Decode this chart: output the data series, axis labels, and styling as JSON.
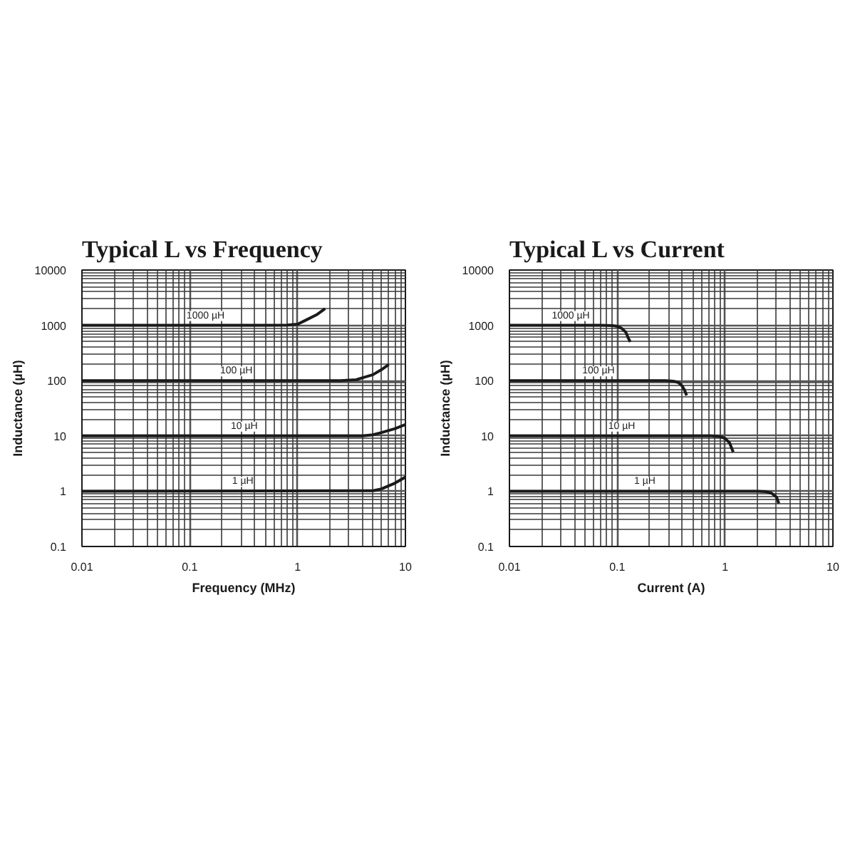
{
  "chart_data": [
    {
      "type": "line",
      "title": "Typical L vs Frequency",
      "xlabel": "Frequency (MHz)",
      "ylabel": "Inductance (µH)",
      "log": "xy",
      "grid": true,
      "xlim": [
        0.01,
        10
      ],
      "ylim": [
        0.1,
        10000
      ],
      "xticks": [
        0.01,
        {
          "value": 0.02,
          "label": null
        },
        {
          "value": 0.03,
          "label": null
        },
        {
          "value": 0.04,
          "label": null
        },
        {
          "value": 0.05,
          "label": null
        },
        {
          "value": 0.06,
          "label": null
        },
        {
          "value": 0.07,
          "label": null
        },
        {
          "value": 0.08,
          "label": null
        },
        {
          "value": 0.09,
          "label": null
        },
        0.1,
        {
          "value": 0.2,
          "label": null
        },
        {
          "value": 0.3,
          "label": null
        },
        {
          "value": 0.4,
          "label": null
        },
        {
          "value": 0.5,
          "label": null
        },
        {
          "value": 0.6,
          "label": null
        },
        {
          "value": 0.7,
          "label": null
        },
        {
          "value": 0.8,
          "label": null
        },
        {
          "value": 0.9,
          "label": null
        },
        1,
        {
          "value": 2,
          "label": null
        },
        {
          "value": 3,
          "label": null
        },
        {
          "value": 4,
          "label": null
        },
        {
          "value": 5,
          "label": null
        },
        {
          "value": 6,
          "label": null
        },
        {
          "value": 7,
          "label": null
        },
        {
          "value": 8,
          "label": null
        },
        {
          "value": 9,
          "label": null
        },
        10
      ],
      "yticks": [
        0.1,
        {
          "value": 0.2,
          "label": null
        },
        {
          "value": 0.3,
          "label": null
        },
        {
          "value": 0.4,
          "label": null
        },
        {
          "value": 0.5,
          "label": null
        },
        {
          "value": 0.6,
          "label": null
        },
        {
          "value": 0.7,
          "label": null
        },
        {
          "value": 0.8,
          "label": null
        },
        {
          "value": 0.9,
          "label": null
        },
        1,
        {
          "value": 2,
          "label": null
        },
        {
          "value": 3,
          "label": null
        },
        {
          "value": 4,
          "label": null
        },
        {
          "value": 5,
          "label": null
        },
        {
          "value": 6,
          "label": null
        },
        {
          "value": 7,
          "label": null
        },
        {
          "value": 8,
          "label": null
        },
        {
          "value": 9,
          "label": null
        },
        10,
        {
          "value": 20,
          "label": null
        },
        {
          "value": 30,
          "label": null
        },
        {
          "value": 40,
          "label": null
        },
        {
          "value": 50,
          "label": null
        },
        {
          "value": 60,
          "label": null
        },
        {
          "value": 70,
          "label": null
        },
        {
          "value": 80,
          "label": null
        },
        {
          "value": 90,
          "label": null
        },
        100,
        {
          "value": 200,
          "label": null
        },
        {
          "value": 300,
          "label": null
        },
        {
          "value": 400,
          "label": null
        },
        {
          "value": 500,
          "label": null
        },
        {
          "value": 600,
          "label": null
        },
        {
          "value": 700,
          "label": null
        },
        {
          "value": 800,
          "label": null
        },
        {
          "value": 900,
          "label": null
        },
        1000,
        {
          "value": 2000,
          "label": null
        },
        {
          "value": 3000,
          "label": null
        },
        {
          "value": 4000,
          "label": null
        },
        {
          "value": 5000,
          "label": null
        },
        {
          "value": 6000,
          "label": null
        },
        {
          "value": 7000,
          "label": null
        },
        {
          "value": 8000,
          "label": null
        },
        {
          "value": 9000,
          "label": null
        },
        10000
      ],
      "series": [
        {
          "color": "#1a1a1a",
          "x": [
            0.01,
            0.5,
            0.8,
            1.0,
            1.2,
            1.5,
            1.8
          ],
          "values": [
            1000,
            1000,
            1010,
            1050,
            1250,
            1550,
            2000
          ]
        },
        {
          "color": "#1a1a1a",
          "x": [
            0.01,
            2.5,
            3.5,
            5,
            6,
            7
          ],
          "values": [
            100,
            100,
            104,
            128,
            158,
            195
          ]
        },
        {
          "color": "#1a1a1a",
          "x": [
            0.01,
            4,
            5,
            6,
            8,
            10
          ],
          "values": [
            10,
            10,
            10.5,
            11.5,
            13.5,
            16
          ]
        },
        {
          "color": "#1a1a1a",
          "x": [
            0.01,
            5,
            6,
            8,
            10
          ],
          "values": [
            1,
            1.02,
            1.1,
            1.4,
            1.8
          ]
        }
      ],
      "annotations": [
        {
          "text": "1000 µH",
          "x": 0.14,
          "y": 1000
        },
        {
          "text": "100 µH",
          "x": 0.27,
          "y": 100
        },
        {
          "text": "10 µH",
          "x": 0.32,
          "y": 10
        },
        {
          "text": "1 µH",
          "x": 0.31,
          "y": 1
        }
      ]
    },
    {
      "type": "line",
      "title": "Typical L vs Current",
      "xlabel": "Current (A)",
      "ylabel": "Inductance (µH)",
      "log": "xy",
      "grid": true,
      "xlim": [
        0.01,
        10
      ],
      "ylim": [
        0.1,
        10000
      ],
      "xticks": [
        0.01,
        {
          "value": 0.02,
          "label": null
        },
        {
          "value": 0.03,
          "label": null
        },
        {
          "value": 0.04,
          "label": null
        },
        {
          "value": 0.05,
          "label": null
        },
        {
          "value": 0.06,
          "label": null
        },
        {
          "value": 0.07,
          "label": null
        },
        {
          "value": 0.08,
          "label": null
        },
        {
          "value": 0.09,
          "label": null
        },
        0.1,
        {
          "value": 0.2,
          "label": null
        },
        {
          "value": 0.3,
          "label": null
        },
        {
          "value": 0.4,
          "label": null
        },
        {
          "value": 0.5,
          "label": null
        },
        {
          "value": 0.6,
          "label": null
        },
        {
          "value": 0.7,
          "label": null
        },
        {
          "value": 0.8,
          "label": null
        },
        {
          "value": 0.9,
          "label": null
        },
        1,
        {
          "value": 2,
          "label": null
        },
        {
          "value": 3,
          "label": null
        },
        {
          "value": 4,
          "label": null
        },
        {
          "value": 5,
          "label": null
        },
        {
          "value": 6,
          "label": null
        },
        {
          "value": 7,
          "label": null
        },
        {
          "value": 8,
          "label": null
        },
        {
          "value": 9,
          "label": null
        },
        10
      ],
      "yticks": [
        0.1,
        {
          "value": 0.2,
          "label": null
        },
        {
          "value": 0.3,
          "label": null
        },
        {
          "value": 0.4,
          "label": null
        },
        {
          "value": 0.5,
          "label": null
        },
        {
          "value": 0.6,
          "label": null
        },
        {
          "value": 0.7,
          "label": null
        },
        {
          "value": 0.8,
          "label": null
        },
        {
          "value": 0.9,
          "label": null
        },
        1,
        {
          "value": 2,
          "label": null
        },
        {
          "value": 3,
          "label": null
        },
        {
          "value": 4,
          "label": null
        },
        {
          "value": 5,
          "label": null
        },
        {
          "value": 6,
          "label": null
        },
        {
          "value": 7,
          "label": null
        },
        {
          "value": 8,
          "label": null
        },
        {
          "value": 9,
          "label": null
        },
        10,
        {
          "value": 20,
          "label": null
        },
        {
          "value": 30,
          "label": null
        },
        {
          "value": 40,
          "label": null
        },
        {
          "value": 50,
          "label": null
        },
        {
          "value": 60,
          "label": null
        },
        {
          "value": 70,
          "label": null
        },
        {
          "value": 80,
          "label": null
        },
        {
          "value": 90,
          "label": null
        },
        100,
        {
          "value": 200,
          "label": null
        },
        {
          "value": 300,
          "label": null
        },
        {
          "value": 400,
          "label": null
        },
        {
          "value": 500,
          "label": null
        },
        {
          "value": 600,
          "label": null
        },
        {
          "value": 700,
          "label": null
        },
        {
          "value": 800,
          "label": null
        },
        {
          "value": 900,
          "label": null
        },
        1000,
        {
          "value": 2000,
          "label": null
        },
        {
          "value": 3000,
          "label": null
        },
        {
          "value": 4000,
          "label": null
        },
        {
          "value": 5000,
          "label": null
        },
        {
          "value": 6000,
          "label": null
        },
        {
          "value": 7000,
          "label": null
        },
        {
          "value": 8000,
          "label": null
        },
        {
          "value": 9000,
          "label": null
        },
        10000
      ],
      "series": [
        {
          "color": "#1a1a1a",
          "x": [
            0.01,
            0.07,
            0.09,
            0.1,
            0.11,
            0.12,
            0.126,
            0.132
          ],
          "values": [
            1000,
            1000,
            990,
            960,
            880,
            750,
            600,
            500
          ]
        },
        {
          "color": "#1a1a1a",
          "x": [
            0.01,
            0.28,
            0.33,
            0.37,
            0.4,
            0.42,
            0.44
          ],
          "values": [
            100,
            100,
            98,
            92,
            80,
            68,
            54
          ]
        },
        {
          "color": "#1a1a1a",
          "x": [
            0.01,
            0.75,
            0.9,
            1.0,
            1.1,
            1.19
          ],
          "values": [
            10,
            10,
            9.7,
            9.0,
            7.5,
            5.1
          ]
        },
        {
          "color": "#1a1a1a",
          "x": [
            0.01,
            2.0,
            2.4,
            2.7,
            3.0,
            3.15
          ],
          "values": [
            1,
            1,
            0.98,
            0.92,
            0.78,
            0.6
          ]
        }
      ],
      "annotations": [
        {
          "text": "1000 µH",
          "x": 0.037,
          "y": 1000
        },
        {
          "text": "100 µH",
          "x": 0.067,
          "y": 100
        },
        {
          "text": "10 µH",
          "x": 0.11,
          "y": 10
        },
        {
          "text": "1 µH",
          "x": 0.18,
          "y": 1
        }
      ]
    }
  ]
}
